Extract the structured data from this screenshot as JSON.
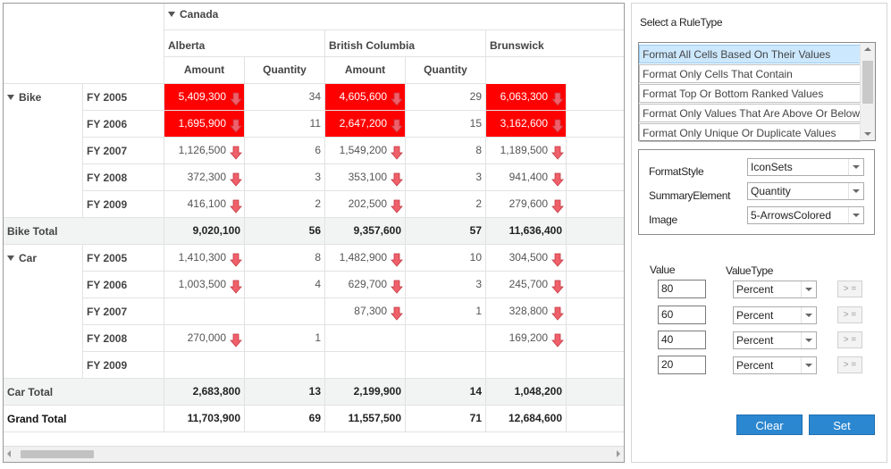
{
  "pivot": {
    "country": "Canada",
    "provinces": [
      "Alberta",
      "British Columbia",
      "Brunswick"
    ],
    "measures": [
      "Amount",
      "Quantity"
    ],
    "rows": [
      {
        "group": "Bike",
        "year": "FY 2005",
        "values": [
          [
            "5,409,300",
            "34"
          ],
          [
            "4,605,600",
            "29"
          ],
          [
            "6,063,300",
            ""
          ]
        ],
        "red": [
          true,
          true,
          true
        ],
        "arrow": [
          true,
          true,
          true
        ]
      },
      {
        "group": "",
        "year": "FY 2006",
        "values": [
          [
            "1,695,900",
            "11"
          ],
          [
            "2,647,200",
            "15"
          ],
          [
            "3,162,600",
            ""
          ]
        ],
        "red": [
          true,
          true,
          true
        ],
        "arrow": [
          true,
          true,
          true
        ]
      },
      {
        "group": "",
        "year": "FY 2007",
        "values": [
          [
            "1,126,500",
            "6"
          ],
          [
            "1,549,200",
            "8"
          ],
          [
            "1,189,500",
            ""
          ]
        ],
        "red": [
          false,
          false,
          false
        ],
        "arrow": [
          true,
          true,
          true
        ]
      },
      {
        "group": "",
        "year": "FY 2008",
        "values": [
          [
            "372,300",
            "3"
          ],
          [
            "353,100",
            "3"
          ],
          [
            "941,400",
            ""
          ]
        ],
        "red": [
          false,
          false,
          false
        ],
        "arrow": [
          true,
          true,
          true
        ]
      },
      {
        "group": "",
        "year": "FY 2009",
        "values": [
          [
            "416,100",
            "2"
          ],
          [
            "202,500",
            "2"
          ],
          [
            "279,600",
            ""
          ]
        ],
        "red": [
          false,
          false,
          false
        ],
        "arrow": [
          true,
          true,
          true
        ]
      },
      {
        "total": "Bike Total",
        "values": [
          [
            "9,020,100",
            "56"
          ],
          [
            "9,357,600",
            "57"
          ],
          [
            "11,636,400",
            ""
          ]
        ]
      },
      {
        "group": "Car",
        "year": "FY 2005",
        "values": [
          [
            "1,410,300",
            "8"
          ],
          [
            "1,482,900",
            "10"
          ],
          [
            "304,500",
            ""
          ]
        ],
        "red": [
          false,
          false,
          false
        ],
        "arrow": [
          true,
          true,
          true
        ]
      },
      {
        "group": "",
        "year": "FY 2006",
        "values": [
          [
            "1,003,500",
            "4"
          ],
          [
            "629,700",
            "3"
          ],
          [
            "245,700",
            ""
          ]
        ],
        "red": [
          false,
          false,
          false
        ],
        "arrow": [
          true,
          true,
          true
        ]
      },
      {
        "group": "",
        "year": "FY 2007",
        "values": [
          [
            "",
            ""
          ],
          [
            "87,300",
            "1"
          ],
          [
            "328,800",
            ""
          ]
        ],
        "red": [
          false,
          false,
          false
        ],
        "arrow": [
          false,
          true,
          true
        ]
      },
      {
        "group": "",
        "year": "FY 2008",
        "values": [
          [
            "270,000",
            "1"
          ],
          [
            "",
            ""
          ],
          [
            "169,200",
            ""
          ]
        ],
        "red": [
          false,
          false,
          false
        ],
        "arrow": [
          true,
          false,
          true
        ]
      },
      {
        "group": "",
        "year": "FY 2009",
        "values": [
          [
            "",
            ""
          ],
          [
            "",
            ""
          ],
          [
            "",
            ""
          ]
        ],
        "red": [
          false,
          false,
          false
        ],
        "arrow": [
          false,
          false,
          false
        ]
      },
      {
        "total": "Car Total",
        "values": [
          [
            "2,683,800",
            "13"
          ],
          [
            "2,199,900",
            "14"
          ],
          [
            "1,048,200",
            ""
          ]
        ]
      },
      {
        "total": "Grand Total",
        "grand": true,
        "values": [
          [
            "11,703,900",
            "69"
          ],
          [
            "11,557,500",
            "71"
          ],
          [
            "12,684,600",
            ""
          ]
        ]
      }
    ],
    "arrow_color": "#f0606a",
    "highlight_color": "#ff0000"
  },
  "panel": {
    "rule_type_label": "Select a RuleType",
    "rule_types": [
      "Format All Cells Based On Their Values",
      "Format Only Cells That Contain",
      "Format Top Or Bottom Ranked Values",
      "Format Only Values That Are Above Or Below Average",
      "Format Only Unique Or Duplicate Values"
    ],
    "selected_rule": 0,
    "format_style_label": "FormatStyle",
    "format_style_value": "IconSets",
    "summary_element_label": "SummaryElement",
    "summary_element_value": "Quantity",
    "image_label": "Image",
    "image_value": "5-ArrowsColored",
    "value_label": "Value",
    "value_type_label": "ValueType",
    "conditions": [
      {
        "value": "80",
        "type": "Percent",
        "op": "> ="
      },
      {
        "value": "60",
        "type": "Percent",
        "op": "> ="
      },
      {
        "value": "40",
        "type": "Percent",
        "op": "> ="
      },
      {
        "value": "20",
        "type": "Percent",
        "op": "> ="
      }
    ],
    "clear_label": "Clear",
    "set_label": "Set",
    "button_color": "#2b87d0"
  }
}
